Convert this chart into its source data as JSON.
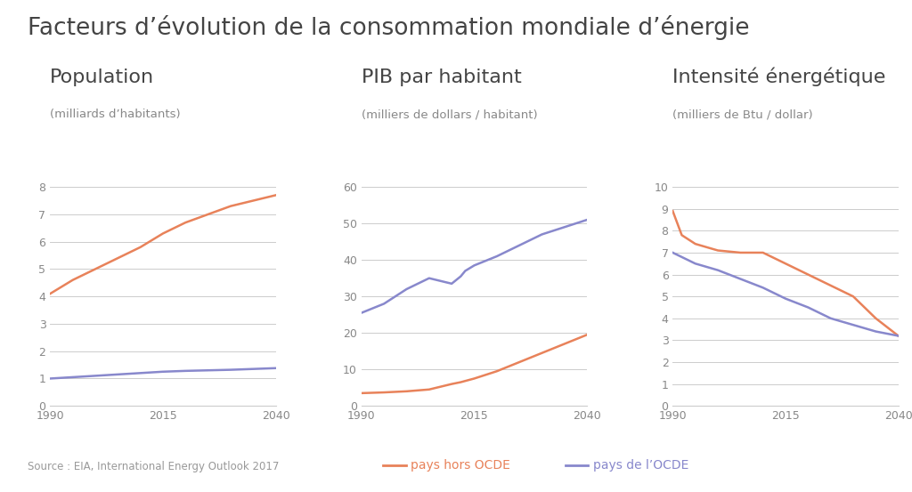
{
  "title": "Facteurs d’évolution de la consommation mondiale d’énergie",
  "source": "Source : EIA, International Energy Outlook 2017",
  "legend": [
    {
      "label": "pays hors OCDE",
      "color": "#E8825A"
    },
    {
      "label": "pays de l’OCDE",
      "color": "#8888CC"
    }
  ],
  "background_color": "#FFFFFF",
  "grid_color": "#CCCCCC",
  "panels": [
    {
      "title": "Population",
      "subtitle": "(milliards d’habitants)",
      "ylim": [
        0,
        8
      ],
      "yticks": [
        0,
        1,
        2,
        3,
        4,
        5,
        6,
        7,
        8
      ],
      "xlim": [
        1990,
        2040
      ],
      "xticks": [
        1990,
        2015,
        2040
      ],
      "non_ocde_x": [
        1990,
        1995,
        2000,
        2005,
        2010,
        2015,
        2020,
        2025,
        2030,
        2035,
        2040
      ],
      "non_ocde_y": [
        4.1,
        4.6,
        5.0,
        5.4,
        5.8,
        6.3,
        6.7,
        7.0,
        7.3,
        7.5,
        7.7
      ],
      "ocde_x": [
        1990,
        1995,
        2000,
        2005,
        2010,
        2015,
        2020,
        2025,
        2030,
        2035,
        2040
      ],
      "ocde_y": [
        1.0,
        1.05,
        1.1,
        1.15,
        1.2,
        1.25,
        1.28,
        1.3,
        1.32,
        1.35,
        1.38
      ]
    },
    {
      "title": "PIB par habitant",
      "subtitle": "(milliers de dollars / habitant)",
      "ylim": [
        0,
        60
      ],
      "yticks": [
        0,
        10,
        20,
        30,
        40,
        50,
        60
      ],
      "xlim": [
        1990,
        2040
      ],
      "xticks": [
        1990,
        2015,
        2040
      ],
      "non_ocde_x": [
        1990,
        1995,
        2000,
        2005,
        2010,
        2012,
        2015,
        2020,
        2025,
        2030,
        2035,
        2040
      ],
      "non_ocde_y": [
        3.5,
        3.7,
        4.0,
        4.5,
        6.0,
        6.5,
        7.5,
        9.5,
        12.0,
        14.5,
        17.0,
        19.5
      ],
      "ocde_x": [
        1990,
        1995,
        2000,
        2005,
        2010,
        2012,
        2013,
        2015,
        2020,
        2025,
        2030,
        2035,
        2040
      ],
      "ocde_y": [
        25.5,
        28.0,
        32.0,
        35.0,
        33.5,
        35.5,
        37.0,
        38.5,
        41.0,
        44.0,
        47.0,
        49.0,
        51.0
      ]
    },
    {
      "title": "Intensité énergétique",
      "subtitle": "(milliers de Btu / dollar)",
      "ylim": [
        0,
        10
      ],
      "yticks": [
        0,
        1,
        2,
        3,
        4,
        5,
        6,
        7,
        8,
        9,
        10
      ],
      "xlim": [
        1990,
        2040
      ],
      "xticks": [
        1990,
        2015,
        2040
      ],
      "non_ocde_x": [
        1990,
        1992,
        1995,
        2000,
        2005,
        2010,
        2012,
        2015,
        2020,
        2025,
        2030,
        2035,
        2040
      ],
      "non_ocde_y": [
        8.9,
        7.8,
        7.4,
        7.1,
        7.0,
        7.0,
        6.8,
        6.5,
        6.0,
        5.5,
        5.0,
        4.0,
        3.2
      ],
      "ocde_x": [
        1990,
        1992,
        1995,
        2000,
        2005,
        2010,
        2012,
        2015,
        2020,
        2025,
        2030,
        2035,
        2040
      ],
      "ocde_y": [
        7.0,
        6.8,
        6.5,
        6.2,
        5.8,
        5.4,
        5.2,
        4.9,
        4.5,
        4.0,
        3.7,
        3.4,
        3.2
      ]
    }
  ],
  "non_ocde_color": "#E8825A",
  "ocde_color": "#8888CC",
  "line_width": 1.8,
  "title_fontsize": 19,
  "panel_title_fontsize": 16,
  "subtitle_fontsize": 9.5,
  "tick_fontsize": 9,
  "source_fontsize": 8.5,
  "legend_fontsize": 10
}
